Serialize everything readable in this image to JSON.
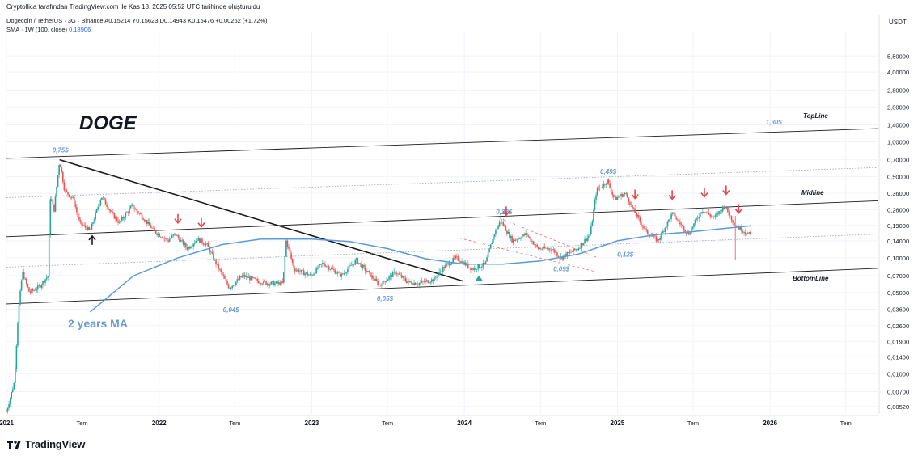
{
  "header": {
    "credit": "Cryptollica tarafından TradingView.com ile Kas 18, 2025 05:52 UTC tarihinde oluşturuldu",
    "symbol": "Dogecoin / TetherUS · 3G · Binance",
    "open": "A0,15214",
    "high": "Y0,15623",
    "low": "D0,14943",
    "close": "K0,15476",
    "change": "+0,00262 (+1,72%)",
    "sma_label": "SMA · 1W (100, close)",
    "sma_value": "0,18906"
  },
  "footer": {
    "brand": "TradingView",
    "logo_icon": "tradingview-logo-icon"
  },
  "chart_data": {
    "type": "candlestick",
    "quote_currency": "USDT",
    "y_scale": "log",
    "ylim": [
      0.0045,
      8.8
    ],
    "y_ticks": [
      {
        "v": 5.5,
        "label": "5,50000"
      },
      {
        "v": 4.0,
        "label": "4,00000"
      },
      {
        "v": 2.8,
        "label": "2,80000"
      },
      {
        "v": 2.0,
        "label": "2,00000"
      },
      {
        "v": 1.4,
        "label": "1,40000"
      },
      {
        "v": 1.0,
        "label": "1,00000"
      },
      {
        "v": 0.7,
        "label": "0,70000"
      },
      {
        "v": 0.5,
        "label": "0,50000"
      },
      {
        "v": 0.36,
        "label": "0,36000"
      },
      {
        "v": 0.26,
        "label": "0,26000"
      },
      {
        "v": 0.19,
        "label": "0,19000"
      },
      {
        "v": 0.14,
        "label": "0,14000"
      },
      {
        "v": 0.1,
        "label": "0,10000"
      },
      {
        "v": 0.07,
        "label": "0,07000"
      },
      {
        "v": 0.05,
        "label": "0,05000"
      },
      {
        "v": 0.036,
        "label": "0,03600"
      },
      {
        "v": 0.026,
        "label": "0,02600"
      },
      {
        "v": 0.019,
        "label": "0,01900"
      },
      {
        "v": 0.014,
        "label": "0,01400"
      },
      {
        "v": 0.01,
        "label": "0,01000"
      },
      {
        "v": 0.007,
        "label": "0,00700"
      },
      {
        "v": 0.0052,
        "label": "0,00520"
      }
    ],
    "xlim": [
      "2021-01-01",
      "2026-09-15"
    ],
    "x_ticks": [
      {
        "date": "2021-01-01",
        "label": "2021"
      },
      {
        "date": "2021-07-01",
        "label": "Tem"
      },
      {
        "date": "2022-01-01",
        "label": "2022"
      },
      {
        "date": "2022-07-01",
        "label": "Tem"
      },
      {
        "date": "2023-01-01",
        "label": "2023"
      },
      {
        "date": "2023-07-01",
        "label": "Tem"
      },
      {
        "date": "2024-01-01",
        "label": "2024"
      },
      {
        "date": "2024-07-01",
        "label": "Tem"
      },
      {
        "date": "2025-01-01",
        "label": "2025"
      },
      {
        "date": "2025-07-01",
        "label": "Tem"
      },
      {
        "date": "2026-01-01",
        "label": "2026"
      },
      {
        "date": "2026-07-01",
        "label": "Tem"
      }
    ],
    "price_path": [
      [
        "2021-01-01",
        0.0047
      ],
      [
        "2021-01-20",
        0.0085
      ],
      [
        "2021-01-29",
        0.033
      ],
      [
        "2021-02-08",
        0.075
      ],
      [
        "2021-02-25",
        0.05
      ],
      [
        "2021-03-20",
        0.056
      ],
      [
        "2021-04-10",
        0.07
      ],
      [
        "2021-04-16",
        0.33
      ],
      [
        "2021-04-25",
        0.26
      ],
      [
        "2021-05-08",
        0.7
      ],
      [
        "2021-05-20",
        0.38
      ],
      [
        "2021-06-10",
        0.32
      ],
      [
        "2021-06-25",
        0.2
      ],
      [
        "2021-07-20",
        0.17
      ],
      [
        "2021-08-16",
        0.34
      ],
      [
        "2021-09-10",
        0.24
      ],
      [
        "2021-09-28",
        0.2
      ],
      [
        "2021-10-28",
        0.28
      ],
      [
        "2021-11-25",
        0.22
      ],
      [
        "2021-12-20",
        0.17
      ],
      [
        "2022-01-22",
        0.14
      ],
      [
        "2022-02-08",
        0.16
      ],
      [
        "2022-03-10",
        0.12
      ],
      [
        "2022-04-02",
        0.145
      ],
      [
        "2022-04-25",
        0.13
      ],
      [
        "2022-05-20",
        0.085
      ],
      [
        "2022-06-18",
        0.055
      ],
      [
        "2022-07-20",
        0.07
      ],
      [
        "2022-08-25",
        0.063
      ],
      [
        "2022-09-20",
        0.06
      ],
      [
        "2022-10-24",
        0.06
      ],
      [
        "2022-11-01",
        0.14
      ],
      [
        "2022-11-20",
        0.08
      ],
      [
        "2022-12-30",
        0.07
      ],
      [
        "2023-01-28",
        0.09
      ],
      [
        "2023-03-12",
        0.07
      ],
      [
        "2023-04-18",
        0.095
      ],
      [
        "2023-06-12",
        0.058
      ],
      [
        "2023-07-20",
        0.075
      ],
      [
        "2023-08-18",
        0.062
      ],
      [
        "2023-09-12",
        0.06
      ],
      [
        "2023-10-20",
        0.065
      ],
      [
        "2023-11-12",
        0.082
      ],
      [
        "2023-12-12",
        0.1
      ],
      [
        "2024-01-20",
        0.08
      ],
      [
        "2024-02-20",
        0.088
      ],
      [
        "2024-03-12",
        0.16
      ],
      [
        "2024-03-28",
        0.21
      ],
      [
        "2024-04-25",
        0.14
      ],
      [
        "2024-05-28",
        0.16
      ],
      [
        "2024-06-25",
        0.12
      ],
      [
        "2024-07-28",
        0.12
      ],
      [
        "2024-08-18",
        0.1
      ],
      [
        "2024-09-28",
        0.12
      ],
      [
        "2024-10-28",
        0.16
      ],
      [
        "2024-11-12",
        0.38
      ],
      [
        "2024-12-08",
        0.46
      ],
      [
        "2024-12-25",
        0.32
      ],
      [
        "2025-01-20",
        0.36
      ],
      [
        "2025-02-10",
        0.25
      ],
      [
        "2025-03-10",
        0.17
      ],
      [
        "2025-04-08",
        0.14
      ],
      [
        "2025-05-12",
        0.24
      ],
      [
        "2025-06-20",
        0.16
      ],
      [
        "2025-07-22",
        0.26
      ],
      [
        "2025-08-20",
        0.22
      ],
      [
        "2025-09-14",
        0.28
      ],
      [
        "2025-10-10",
        0.19
      ],
      [
        "2025-11-17",
        0.155
      ]
    ],
    "sma_series": {
      "name": "SMA · 1W (100, close)",
      "points": [
        [
          "2021-07-20",
          0.034
        ],
        [
          "2021-11-01",
          0.07
        ],
        [
          "2022-02-15",
          0.1
        ],
        [
          "2022-06-01",
          0.13
        ],
        [
          "2022-09-01",
          0.145
        ],
        [
          "2023-01-01",
          0.145
        ],
        [
          "2023-04-01",
          0.138
        ],
        [
          "2023-07-01",
          0.12
        ],
        [
          "2023-10-01",
          0.098
        ],
        [
          "2024-01-01",
          0.088
        ],
        [
          "2024-04-01",
          0.088
        ],
        [
          "2024-07-01",
          0.094
        ],
        [
          "2024-10-01",
          0.108
        ],
        [
          "2025-01-01",
          0.14
        ],
        [
          "2025-04-01",
          0.158
        ],
        [
          "2025-07-01",
          0.168
        ],
        [
          "2025-11-17",
          0.189
        ]
      ]
    },
    "lines": [
      {
        "name": "topline",
        "from": [
          "2021-01-01",
          0.72
        ],
        "to": [
          "2026-09-15",
          1.3
        ]
      },
      {
        "name": "midline",
        "from": [
          "2021-01-01",
          0.152
        ],
        "to": [
          "2026-09-15",
          0.31
        ]
      },
      {
        "name": "bottomline",
        "from": [
          "2021-01-01",
          0.04
        ],
        "to": [
          "2026-09-15",
          0.081
        ]
      },
      {
        "name": "downtrend",
        "from": [
          "2021-05-08",
          0.7
        ],
        "to": [
          "2023-12-28",
          0.063
        ]
      }
    ],
    "dotted_lines": [
      {
        "from": [
          "2021-01-01",
          0.33
        ],
        "to": [
          "2026-09-15",
          0.6
        ]
      },
      {
        "from": [
          "2021-01-01",
          0.083
        ],
        "to": [
          "2026-09-15",
          0.16
        ]
      }
    ],
    "dashed_channel": [
      {
        "from": [
          "2023-12-20",
          0.148
        ],
        "to": [
          "2024-11-15",
          0.075
        ]
      },
      {
        "from": [
          "2024-03-25",
          0.22
        ],
        "to": [
          "2024-11-15",
          0.1
        ]
      }
    ],
    "annotations": [
      {
        "text": "DOGE",
        "style": "title"
      },
      {
        "text": "TopLine",
        "style": "line-label"
      },
      {
        "text": "Midline",
        "style": "line-label"
      },
      {
        "text": "BottomLine",
        "style": "line-label"
      },
      {
        "text": "2 years MA",
        "style": "ma-label"
      },
      {
        "text": "0,75$",
        "style": "price",
        "date": "2021-05-10",
        "value": 0.75
      },
      {
        "text": "0,04$",
        "style": "price",
        "date": "2022-06-22",
        "value": 0.04
      },
      {
        "text": "0,05$",
        "style": "price",
        "date": "2023-06-25",
        "value": 0.05
      },
      {
        "text": "0,22$",
        "style": "price",
        "date": "2024-04-05",
        "value": 0.22
      },
      {
        "text": "0,09$",
        "style": "price",
        "date": "2024-08-20",
        "value": 0.09
      },
      {
        "text": "0,49$",
        "style": "price",
        "date": "2024-12-10",
        "value": 0.49
      },
      {
        "text": "0,12$",
        "style": "price",
        "date": "2025-01-20",
        "value": 0.12
      },
      {
        "text": "1,30$",
        "style": "price",
        "date": "2026-01-10",
        "value": 1.3
      }
    ],
    "markers": [
      {
        "type": "up-arrow",
        "color": "#1b1b1b",
        "date": "2021-07-25"
      },
      {
        "type": "down-arrow",
        "color": "#e0474c",
        "date": "2022-02-15"
      },
      {
        "type": "down-arrow",
        "color": "#e0474c",
        "date": "2022-04-12"
      },
      {
        "type": "down-arrow",
        "color": "#e0474c",
        "date": "2024-04-10"
      },
      {
        "type": "down-arrow",
        "color": "#e0474c",
        "date": "2025-02-12"
      },
      {
        "type": "down-arrow",
        "color": "#e0474c",
        "date": "2025-05-12"
      },
      {
        "type": "down-arrow",
        "color": "#e0474c",
        "date": "2025-07-28"
      },
      {
        "type": "down-arrow",
        "color": "#e0474c",
        "date": "2025-09-18"
      },
      {
        "type": "down-arrow",
        "color": "#e0474c",
        "date": "2025-10-18"
      },
      {
        "type": "up-triangle",
        "color": "#26a69a",
        "date": "2024-02-05"
      }
    ],
    "colors": {
      "up_candle": "#26a69a",
      "down_candle": "#ef5350",
      "sma": "#5b9bd5",
      "label_blue": "#6a9bd4",
      "arrow_red": "#e0474c",
      "line": "#1b1b1b",
      "grid": "#f0f3fa"
    }
  }
}
